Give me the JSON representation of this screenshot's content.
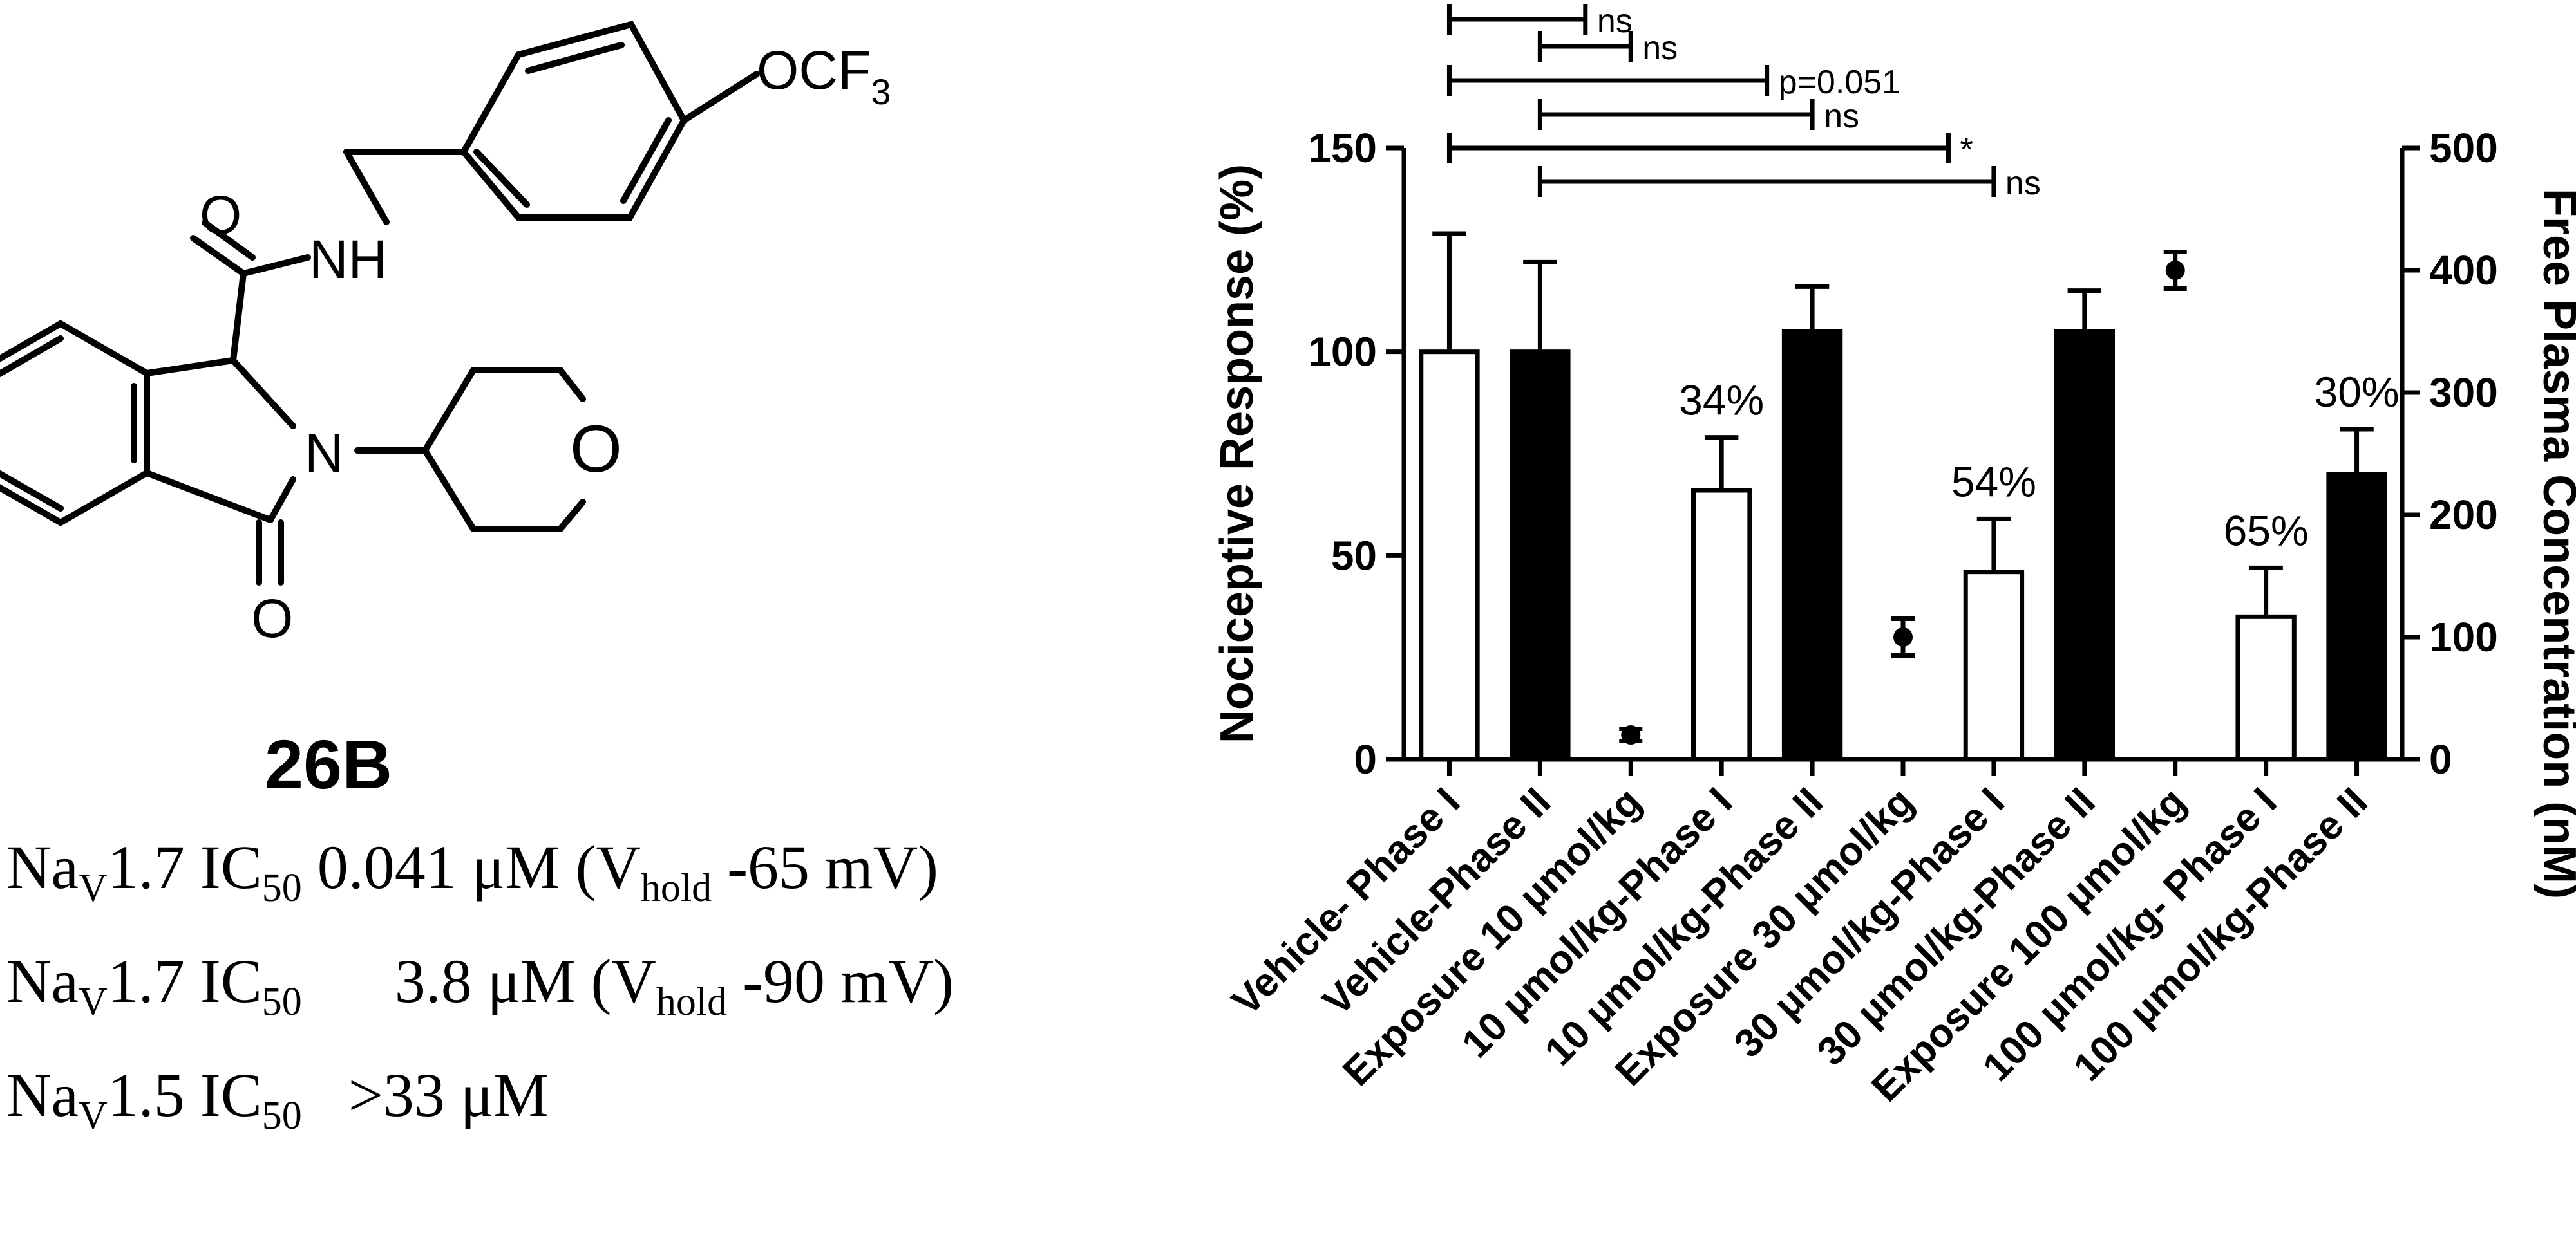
{
  "compound": {
    "name": "26B",
    "structure_labels": {
      "ocf3": "OCF",
      "ocf3_sub": "3",
      "o_amide": "O",
      "nh": "NH",
      "n": "N",
      "o_ring": "O",
      "o_ketone": "O"
    }
  },
  "potency": [
    {
      "target": "Na",
      "target_sub": "V",
      "target_rest": "1.7 IC",
      "ic_sub": "50",
      "value": " 0.041 μM (V",
      "hold_sub": "hold",
      "suffix": " -65 mV)"
    },
    {
      "target": "Na",
      "target_sub": "V",
      "target_rest": "1.7 IC",
      "ic_sub": "50",
      "value": "      3.8 μM (V",
      "hold_sub": "hold",
      "suffix": " -90 mV)"
    },
    {
      "target": "Na",
      "target_sub": "V",
      "target_rest": "1.5 IC",
      "ic_sub": "50",
      "value": "   >33 μM",
      "hold_sub": "",
      "suffix": ""
    }
  ],
  "chart_data": {
    "type": "bar",
    "title": "",
    "ylabel": "Nociceptive Response (%)",
    "y2label": "Free Plasma Concentration (nM)",
    "ylim": [
      0,
      150
    ],
    "y2lim": [
      0,
      500
    ],
    "yticks": [
      "0",
      "50",
      "100",
      "150"
    ],
    "y2ticks": [
      "0",
      "100",
      "200",
      "300",
      "400",
      "500"
    ],
    "categories": [
      "Vehicle- Phase I",
      "Vehicle-Phase II",
      "Exposure 10 μmol/kg",
      "10 μmol/kg-Phase I",
      "10 μmol/kg-Phase II",
      "Exposure 30 μmol/kg",
      "30 μmol/kg-Phase I",
      "30 μmol/kg-Phase II",
      "Exposure 100 μmol/kg",
      "100 μmol/kg- Phase I",
      "100 μmol/kg-Phase II"
    ],
    "bars": [
      {
        "category": 0,
        "value": 100,
        "error": 29,
        "fill": "open"
      },
      {
        "category": 1,
        "value": 100,
        "error": 22,
        "fill": "filled"
      },
      {
        "category": 3,
        "value": 66,
        "error": 13,
        "fill": "open",
        "label": "34%"
      },
      {
        "category": 4,
        "value": 105,
        "error": 11,
        "fill": "filled"
      },
      {
        "category": 6,
        "value": 46,
        "error": 13,
        "fill": "open",
        "label": "54%"
      },
      {
        "category": 7,
        "value": 105,
        "error": 10,
        "fill": "filled"
      },
      {
        "category": 9,
        "value": 35,
        "error": 12,
        "fill": "open",
        "label": "65%"
      },
      {
        "category": 10,
        "value": 70,
        "error": 11,
        "fill": "filled",
        "label": "30%"
      }
    ],
    "exposure_points": [
      {
        "category": 2,
        "value": 20,
        "error": 5
      },
      {
        "category": 5,
        "value": 100,
        "error": 15
      },
      {
        "category": 8,
        "value": 400,
        "error": 15
      }
    ],
    "comparisons": [
      {
        "from": 0,
        "to": 4,
        "label": "ns"
      },
      {
        "from": 1,
        "to": 5,
        "label": "ns"
      },
      {
        "from": 0,
        "to": 8,
        "label": "p=0.051"
      },
      {
        "from": 1,
        "to": 9,
        "label": "ns"
      },
      {
        "from": 0,
        "to": 12,
        "label": "*"
      },
      {
        "from": 1,
        "to": 13,
        "label": "ns"
      }
    ],
    "colors": {
      "filled": "#000000",
      "open": "#ffffff",
      "stroke": "#000000"
    }
  }
}
